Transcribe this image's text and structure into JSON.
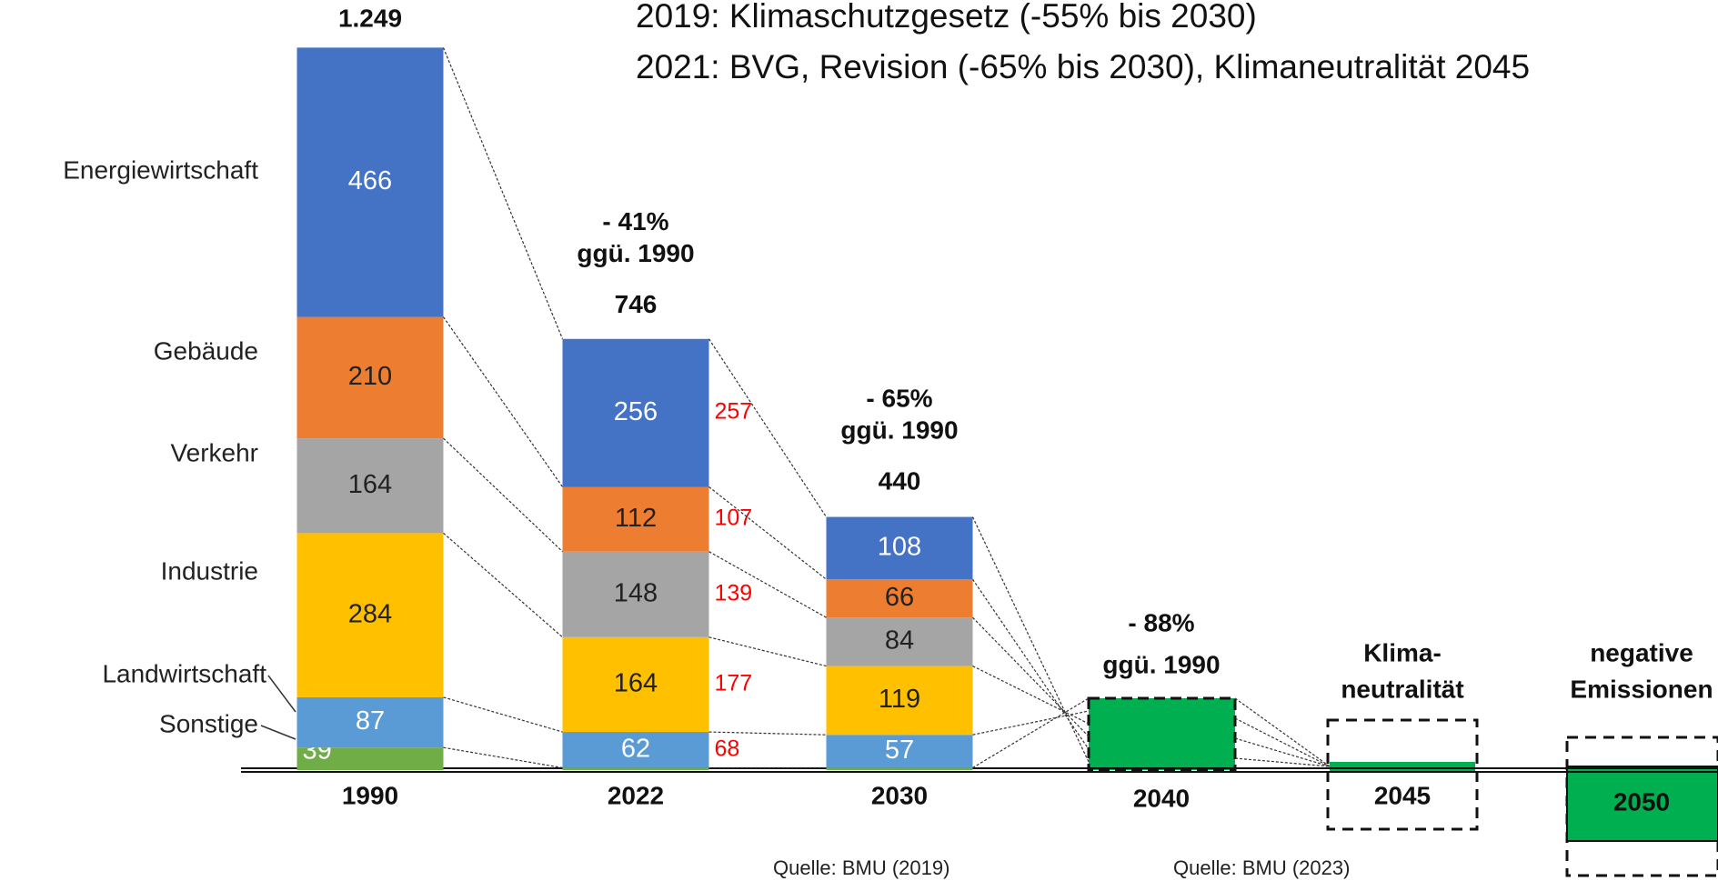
{
  "chart_data": {
    "type": "stacked-bar",
    "title": [
      "2019: Klimaschutzgesetz (-55% bis 2030)",
      "2021: BVG, Revision (-65% bis 2030), Klimaneutralität 2045"
    ],
    "categories": [
      "1990",
      "2022",
      "2030",
      "2040",
      "2045",
      "2050"
    ],
    "series": [
      {
        "name": "Sonstige",
        "color": "#70ad47",
        "values": [
          39,
          4,
          4,
          null,
          null,
          null
        ]
      },
      {
        "name": "Landwirtschaft",
        "color": "#5b9bd5",
        "values": [
          87,
          62,
          57,
          null,
          null,
          null
        ]
      },
      {
        "name": "Industrie",
        "color": "#ffc000",
        "values": [
          284,
          164,
          119,
          null,
          null,
          null
        ]
      },
      {
        "name": "Verkehr",
        "color": "#a5a5a5",
        "values": [
          164,
          148,
          84,
          null,
          null,
          null
        ]
      },
      {
        "name": "Gebäude",
        "color": "#ed7d31",
        "values": [
          210,
          112,
          66,
          null,
          null,
          null
        ]
      },
      {
        "name": "Energiewirtschaft",
        "color": "#4472c4",
        "values": [
          466,
          256,
          108,
          null,
          null,
          null
        ]
      }
    ],
    "totals": {
      "values": [
        1249,
        746,
        440,
        null,
        null,
        null
      ],
      "value_labels": [
        "1.249",
        "746",
        "440",
        null,
        null,
        null
      ]
    },
    "comparison": {
      "category": "2022",
      "color": "#ff0000",
      "values": [
        null,
        68,
        177,
        139,
        107,
        257
      ]
    },
    "annotations": [
      {
        "category": "2022",
        "lines": [
          "- 41%",
          "ggü. 1990"
        ]
      },
      {
        "category": "2030",
        "lines": [
          "- 65%",
          "ggü. 1990"
        ]
      },
      {
        "category": "2040",
        "lines": [
          "- 88%",
          "ggü. 1990"
        ]
      },
      {
        "category": "2045",
        "lines": [
          "Klima-",
          "neutralität"
        ]
      },
      {
        "category": "2050",
        "lines": [
          "negative",
          "Emissionen"
        ]
      }
    ],
    "sources": [
      "Quelle: BMU (2019)",
      "Quelle: BMU (2023)"
    ]
  }
}
